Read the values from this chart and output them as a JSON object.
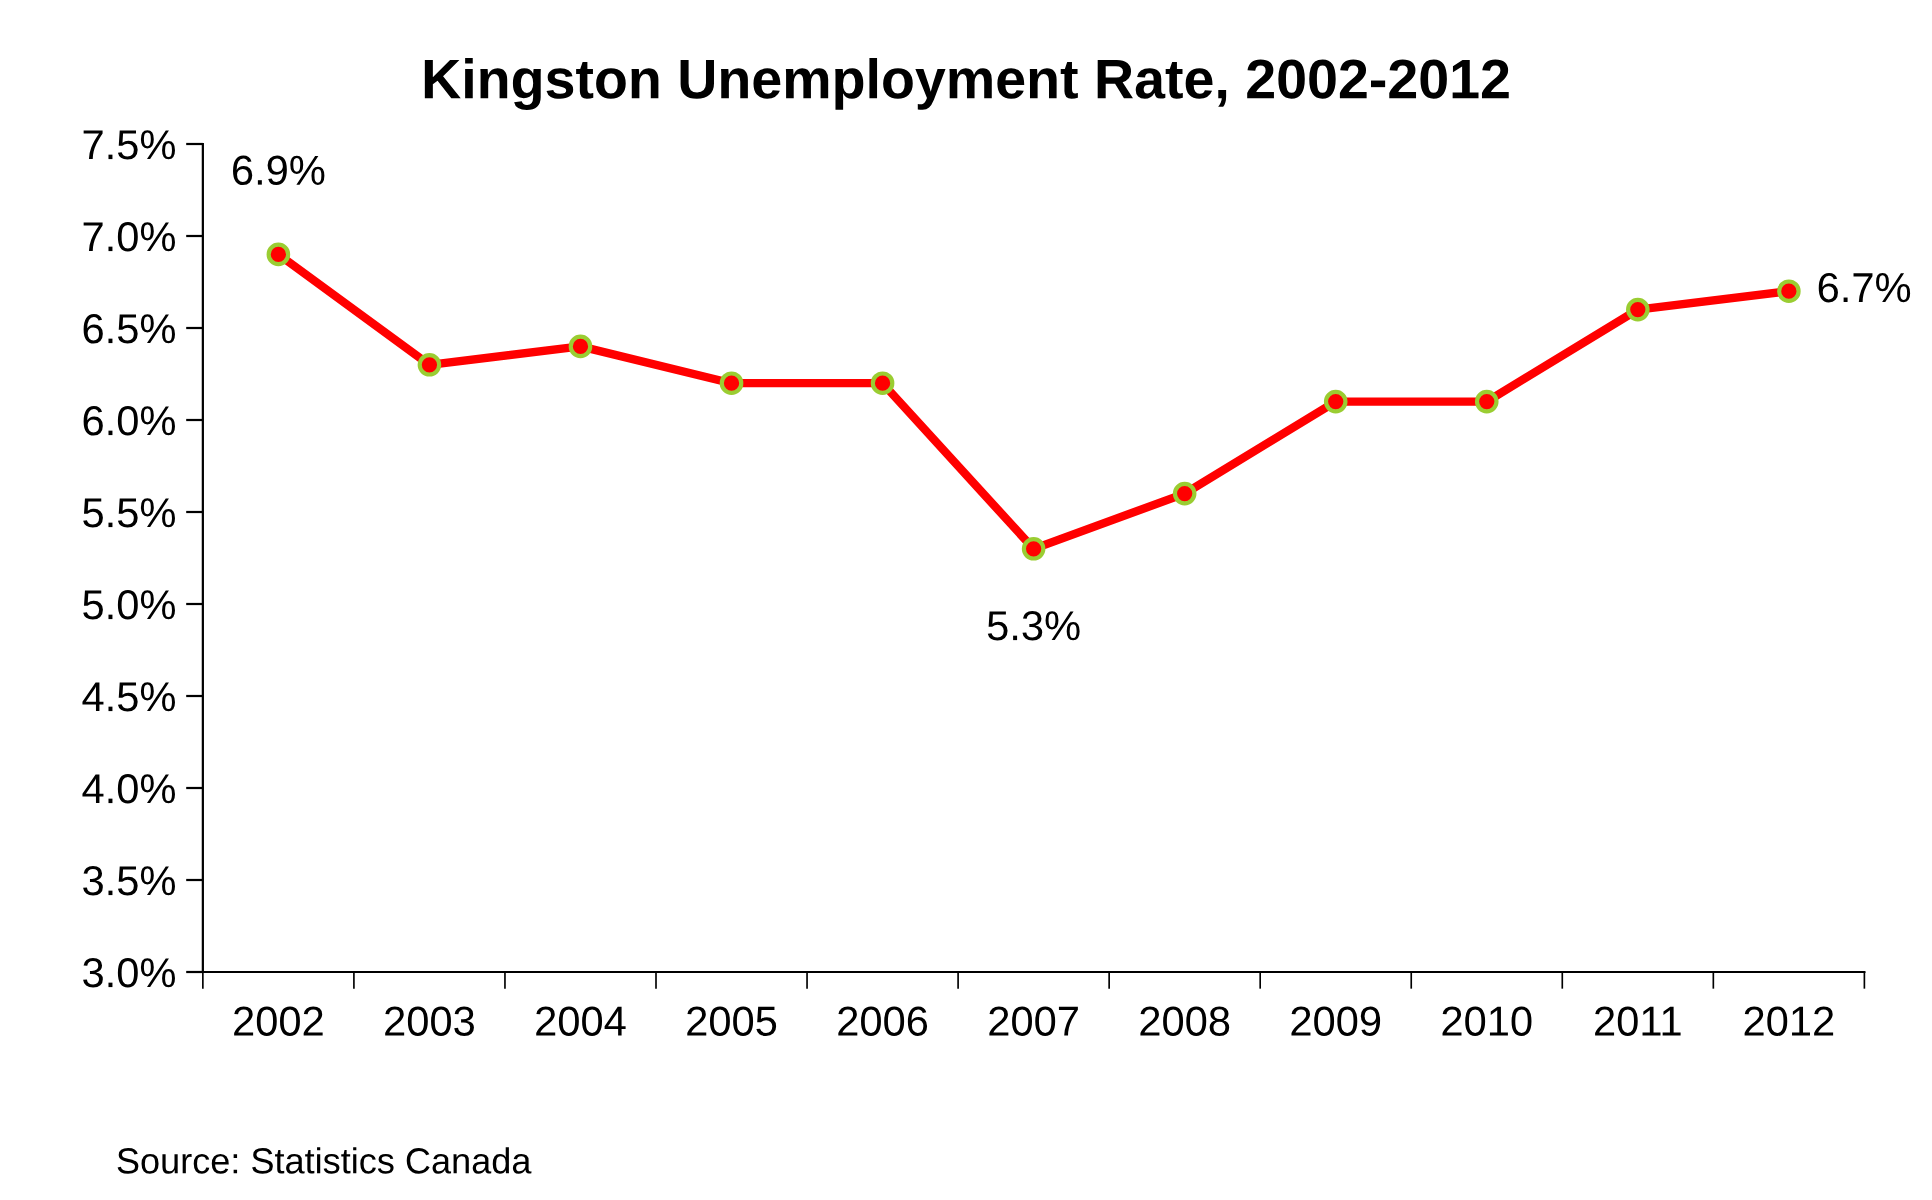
{
  "chart_data": {
    "type": "line",
    "title": "Kingston Unemployment Rate, 2002-2012",
    "categories": [
      "2002",
      "2003",
      "2004",
      "2005",
      "2006",
      "2007",
      "2008",
      "2009",
      "2010",
      "2011",
      "2012"
    ],
    "series": [
      {
        "color": "#ff0000",
        "values": [
          6.9,
          6.3,
          6.4,
          6.2,
          6.2,
          5.3,
          5.6,
          6.1,
          6.1,
          6.6,
          6.7
        ],
        "value_labels": [
          "6.9%",
          null,
          null,
          null,
          null,
          "5.3%",
          null,
          null,
          null,
          null,
          "6.7%"
        ]
      }
    ],
    "ylim": [
      3.0,
      7.5
    ],
    "yticks": [
      {
        "value": 3.0,
        "label": "3.0%"
      },
      {
        "value": 3.5,
        "label": "3.5%"
      },
      {
        "value": 4.0,
        "label": "4.0%"
      },
      {
        "value": 4.5,
        "label": "4.5%"
      },
      {
        "value": 5.0,
        "label": "5.0%"
      },
      {
        "value": 5.5,
        "label": "5.5%"
      },
      {
        "value": 6.0,
        "label": "6.0%"
      },
      {
        "value": 6.5,
        "label": "6.5%"
      },
      {
        "value": 7.0,
        "label": "7.0%"
      },
      {
        "value": 7.5,
        "label": "7.5%"
      }
    ],
    "marker": "circle",
    "line_style": "solid",
    "grid": false,
    "legend": false,
    "annotations": [
      "Source: Statistics Canada"
    ]
  }
}
